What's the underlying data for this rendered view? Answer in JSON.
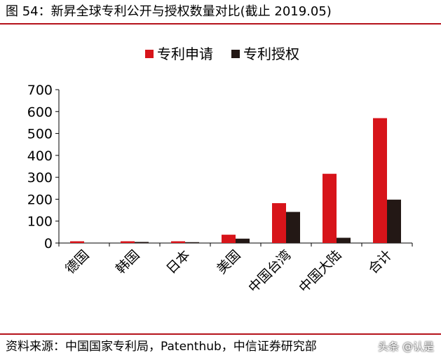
{
  "figure": {
    "title": "图 54：新昇全球专利公开与授权数量对比(截止 2019.05)",
    "source": "资料来源：中国国家专利局，Patenthub，中信证券研究部",
    "watermark": "头条 @认是"
  },
  "colors": {
    "accent_rule": "#b5121b",
    "series_application": "#d7141a",
    "series_grant": "#231815"
  },
  "chart_data": {
    "type": "bar",
    "categories": [
      "德国",
      "韩国",
      "日本",
      "美国",
      "中国台湾",
      "中国大陆",
      "合计"
    ],
    "series": [
      {
        "name": "专利申请",
        "values": [
          8,
          8,
          8,
          38,
          182,
          316,
          570
        ]
      },
      {
        "name": "专利授权",
        "values": [
          0,
          5,
          4,
          20,
          142,
          24,
          198
        ]
      }
    ],
    "ylim": [
      0,
      700
    ],
    "yticks": [
      0,
      100,
      200,
      300,
      400,
      500,
      600,
      700
    ],
    "xlabel": "",
    "ylabel": "",
    "legend_position": "top-center",
    "grid": false
  }
}
